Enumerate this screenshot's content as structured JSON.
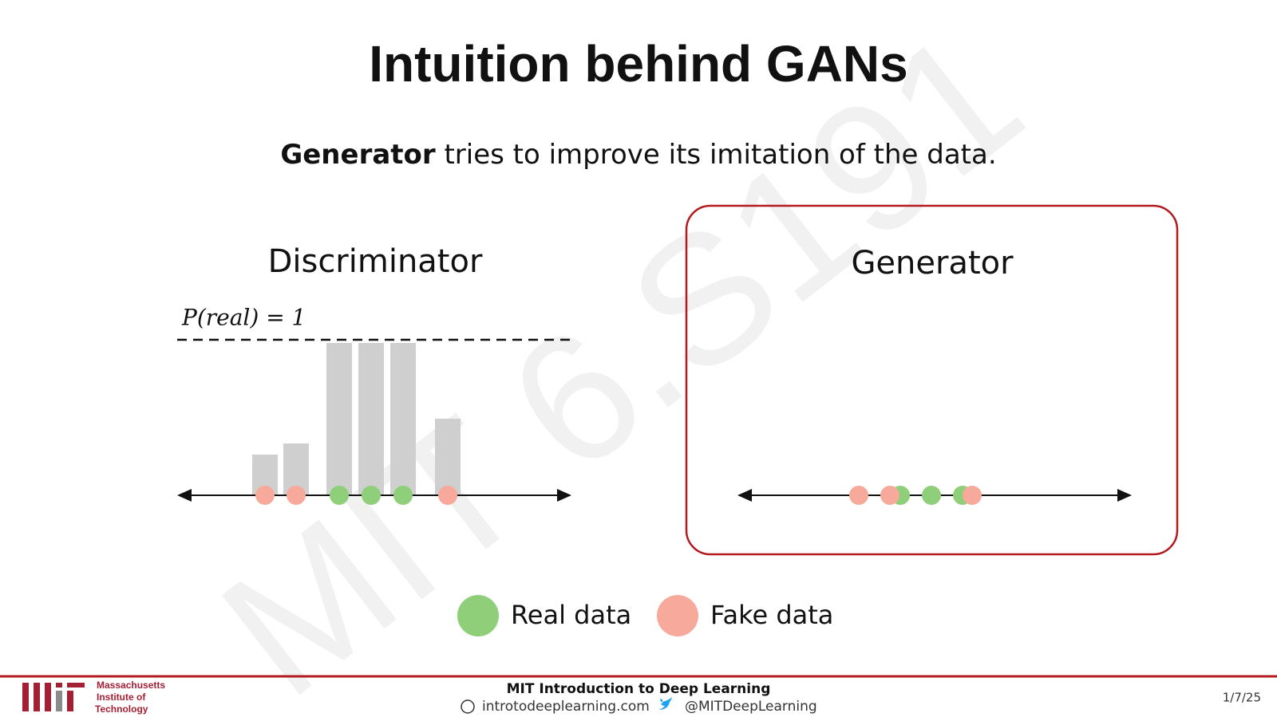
{
  "slide": {
    "title": "Intuition behind GANs",
    "subtitle": {
      "bold": "Generator",
      "rest": " tries to improve its imitation of the data."
    },
    "watermark": "MIT 6.S191",
    "discriminator": {
      "label": "Discriminator",
      "threshold_label": "P(real) = 1"
    },
    "generator": {
      "label": "Generator"
    },
    "legend": [
      "Real data",
      "Fake data"
    ],
    "footer": {
      "institute": [
        "Massachusetts",
        "Institute of",
        "Technology"
      ],
      "course": "MIT Introduction to Deep Learning",
      "website": "introtodeeplearning.com",
      "twitter": "@MITDeepLearning",
      "date": "1/7/25"
    }
  }
}
